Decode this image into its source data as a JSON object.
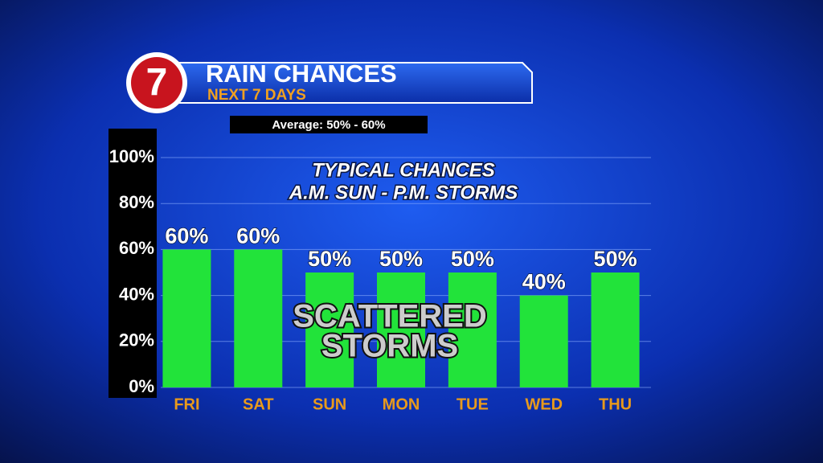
{
  "logo": "7",
  "chart_data": {
    "type": "bar",
    "title": "RAIN CHANCES",
    "subtitle": "NEXT 7 DAYS",
    "note": "Average: 50% - 60%",
    "annotations": [
      "TYPICAL CHANCES",
      "A.M. SUN - P.M. STORMS",
      "SCATTERED",
      "STORMS"
    ],
    "categories": [
      "FRI",
      "SAT",
      "SUN",
      "MON",
      "TUE",
      "WED",
      "THU"
    ],
    "values": [
      60,
      60,
      50,
      50,
      50,
      40,
      50
    ],
    "value_labels": [
      "60%",
      "60%",
      "50%",
      "50%",
      "50%",
      "40%",
      "50%"
    ],
    "color": "#22e33a",
    "ylim": [
      0,
      100
    ],
    "yticks": [
      {
        "value": 0,
        "label": "0%"
      },
      {
        "value": 20,
        "label": "20%"
      },
      {
        "value": 40,
        "label": "40%"
      },
      {
        "value": 60,
        "label": "60%"
      },
      {
        "value": 80,
        "label": "80%"
      },
      {
        "value": 100,
        "label": "100%"
      }
    ],
    "grid": true
  }
}
